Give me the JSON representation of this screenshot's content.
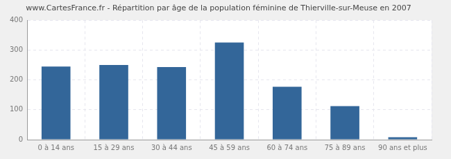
{
  "chart_data": {
    "type": "bar",
    "title": "www.CartesFrance.fr - Répartition par âge de la population féminine de Thierville-sur-Meuse en 2007",
    "categories": [
      "0 à 14 ans",
      "15 à 29 ans",
      "30 à 44 ans",
      "45 à 59 ans",
      "60 à 74 ans",
      "75 à 89 ans",
      "90 ans et plus"
    ],
    "values": [
      245,
      250,
      243,
      325,
      177,
      112,
      8
    ],
    "color": "#336699",
    "ylim": [
      0,
      400
    ],
    "yticks": [
      0,
      100,
      200,
      300,
      400
    ],
    "grid": true
  }
}
